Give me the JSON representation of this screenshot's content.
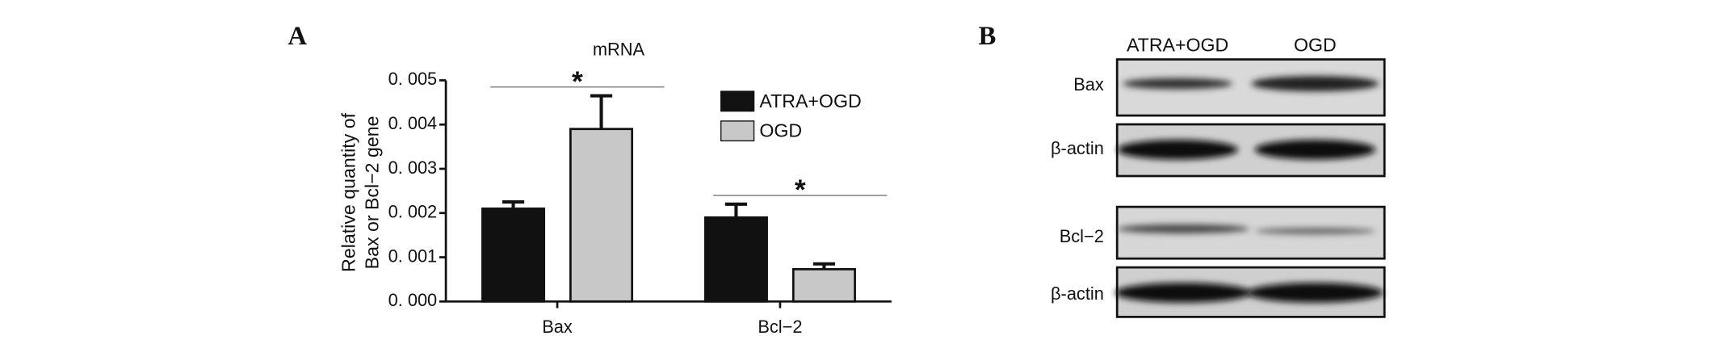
{
  "panel_labels": [
    "A",
    "B"
  ],
  "chart_data": {
    "type": "bar",
    "title": "mRNA",
    "y_label": [
      "Relative quantity of",
      "Bax or Bcl−2 gene"
    ],
    "categories": [
      "Bax",
      "Bcl−2"
    ],
    "series": [
      {
        "name": "ATRA+OGD",
        "color": "#111111",
        "values": [
          0.0021,
          0.0019
        ],
        "errors": [
          0.00015,
          0.0003
        ]
      },
      {
        "name": "OGD",
        "color": "#c8c8c8",
        "values": [
          0.0039,
          0.00073
        ],
        "errors": [
          0.00075,
          0.00012
        ]
      }
    ],
    "ylim": [
      0,
      0.005
    ],
    "yticks": [
      {
        "value": 0,
        "label": "0. 000"
      },
      {
        "value": 0.001,
        "label": "0. 001"
      },
      {
        "value": 0.002,
        "label": "0. 002"
      },
      {
        "value": 0.003,
        "label": "0. 003"
      },
      {
        "value": 0.004,
        "label": "0. 004"
      },
      {
        "value": 0.005,
        "label": "0. 005"
      }
    ],
    "annotations": [
      "*",
      "*"
    ],
    "legend": "upper right"
  },
  "blot": {
    "columns": [
      "ATRA+OGD",
      "OGD"
    ],
    "rows": [
      "Bax",
      "β-actin",
      "Bcl−2",
      "β-actin"
    ]
  }
}
